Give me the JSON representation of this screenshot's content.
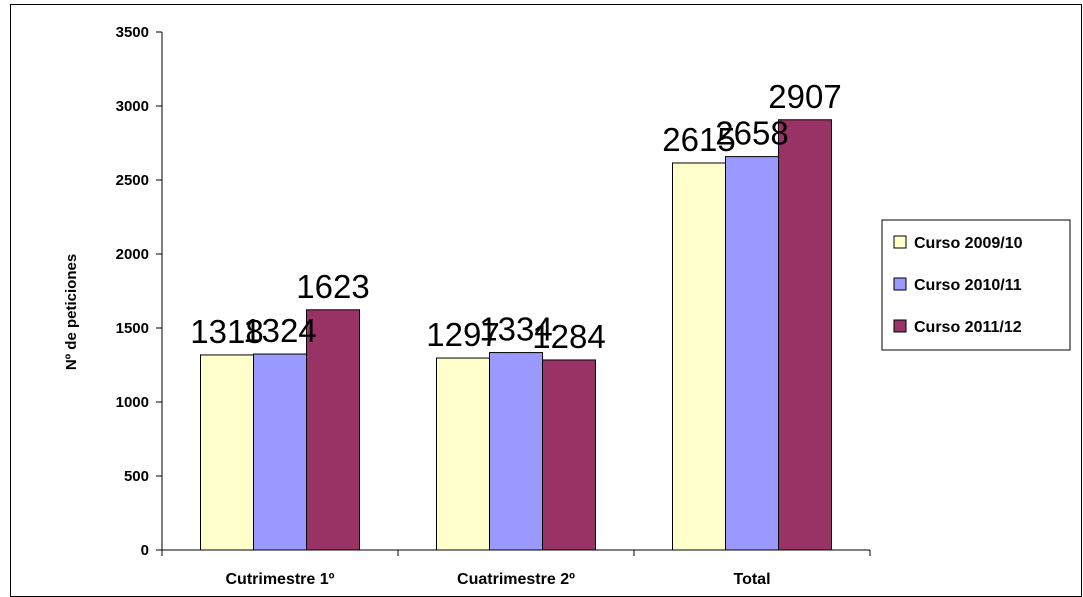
{
  "chart_data": {
    "type": "bar",
    "categories": [
      "Cutrimestre 1º",
      "Cuatrimestre 2º",
      "Total"
    ],
    "series": [
      {
        "name": "Curso 2009/10",
        "values": [
          1318,
          1297,
          2615
        ],
        "color": "#ffffcc"
      },
      {
        "name": "Curso 2010/11",
        "values": [
          1324,
          1334,
          2658
        ],
        "color": "#9999ff"
      },
      {
        "name": "Curso 2011/12",
        "values": [
          1623,
          1284,
          2907
        ],
        "color": "#993366"
      }
    ],
    "title": "",
    "xlabel": "",
    "ylabel": "Nº de peticiones",
    "ylim": [
      0,
      3500
    ],
    "yticks": [
      0,
      500,
      1000,
      1500,
      2000,
      2500,
      3000,
      3500
    ],
    "grid": false,
    "legend": "right",
    "data_labels": true
  }
}
